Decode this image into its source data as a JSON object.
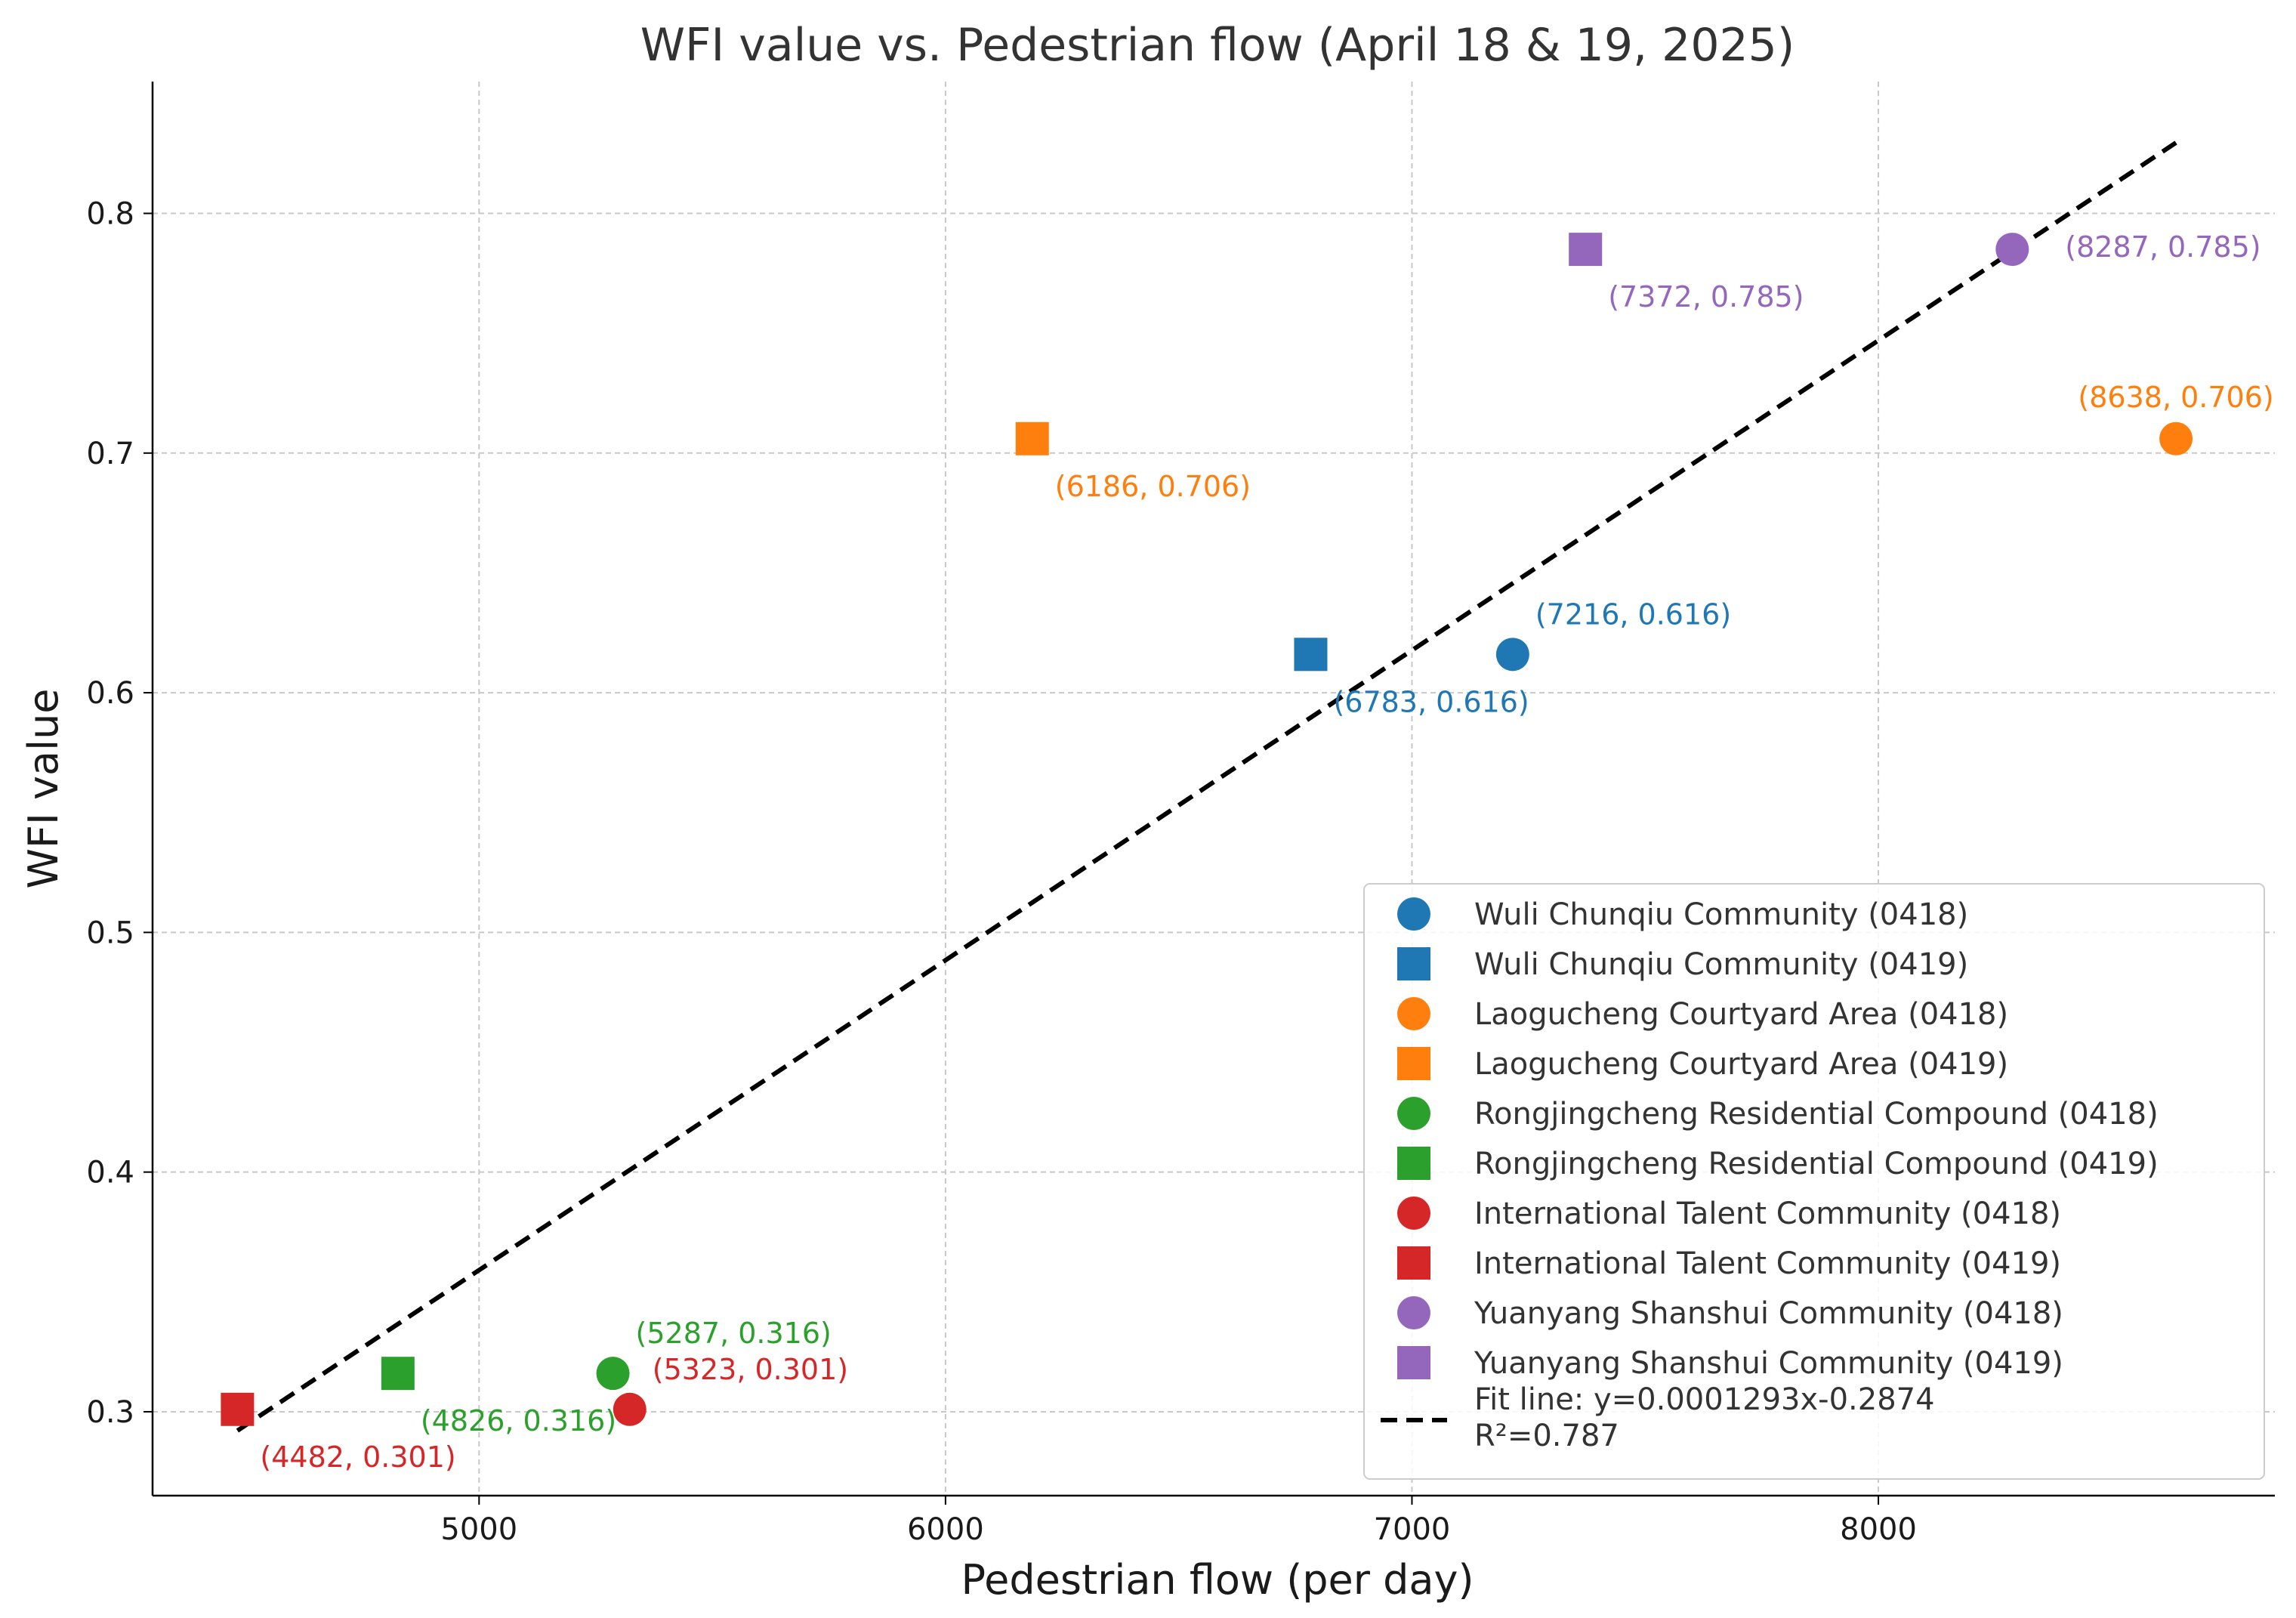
{
  "chart_data": {
    "type": "scatter",
    "title": "WFI value vs. Pedestrian flow (April 18 & 19, 2025)",
    "xlabel": "Pedestrian flow (per day)",
    "ylabel": "WFI value",
    "xlim": [
      4300,
      8850
    ],
    "ylim": [
      0.265,
      0.855
    ],
    "xticks": [
      5000,
      6000,
      7000,
      8000
    ],
    "yticks": [
      0.3,
      0.4,
      0.5,
      0.6,
      0.7,
      0.8
    ],
    "xtick_labels": [
      "5000",
      "6000",
      "7000",
      "8000"
    ],
    "ytick_labels": [
      "0.3",
      "0.4",
      "0.5",
      "0.6",
      "0.7",
      "0.8"
    ],
    "grid": true,
    "legend_position": "bottom-right",
    "series": [
      {
        "name": "Wuli Chunqiu Community (0418)",
        "marker": "circle",
        "color": "#1f77b4",
        "x": 7216,
        "y": 0.616,
        "label": "(7216, 0.616)",
        "label_pos": "upper-right"
      },
      {
        "name": "Wuli Chunqiu Community (0419)",
        "marker": "square",
        "color": "#1f77b4",
        "x": 6783,
        "y": 0.616,
        "label": "(6783, 0.616)",
        "label_pos": "lower-right"
      },
      {
        "name": "Laogucheng Courtyard Area (0418)",
        "marker": "circle",
        "color": "#ff7f0e",
        "x": 8638,
        "y": 0.706,
        "label": "(8638, 0.706)",
        "label_pos": "above"
      },
      {
        "name": "Laogucheng Courtyard Area (0419)",
        "marker": "square",
        "color": "#ff7f0e",
        "x": 6186,
        "y": 0.706,
        "label": "(6186, 0.706)",
        "label_pos": "lower-right"
      },
      {
        "name": "Rongjingcheng Residential Compound (0418)",
        "marker": "circle",
        "color": "#2ca02c",
        "x": 5287,
        "y": 0.316,
        "label": "(5287, 0.316)",
        "label_pos": "upper-right"
      },
      {
        "name": "Rongjingcheng Residential Compound (0419)",
        "marker": "square",
        "color": "#2ca02c",
        "x": 4826,
        "y": 0.316,
        "label": "(4826, 0.316)",
        "label_pos": "lower-right"
      },
      {
        "name": "International Talent Community (0418)",
        "marker": "circle",
        "color": "#d62728",
        "x": 5323,
        "y": 0.301,
        "label": "(5323, 0.301)",
        "label_pos": "upper-right"
      },
      {
        "name": "International Talent Community (0419)",
        "marker": "square",
        "color": "#d62728",
        "x": 4482,
        "y": 0.301,
        "label": "(4482, 0.301)",
        "label_pos": "lower-right"
      },
      {
        "name": "Yuanyang Shanshui Community (0418)",
        "marker": "circle",
        "color": "#9467bd",
        "x": 8287,
        "y": 0.785,
        "label": "(8287, 0.785)",
        "label_pos": "right"
      },
      {
        "name": "Yuanyang Shanshui Community (0419)",
        "marker": "square",
        "color": "#9467bd",
        "x": 7372,
        "y": 0.785,
        "label": "(7372, 0.785)",
        "label_pos": "lower-right"
      }
    ],
    "fit_line": {
      "slope": 0.0001293,
      "intercept": -0.2874,
      "x_range": [
        4482,
        8638
      ],
      "style": "dashed",
      "color": "#000000",
      "legend_label": "Fit line: y=0.0001293x-0.2874",
      "r2_label": "R²=0.787"
    }
  }
}
